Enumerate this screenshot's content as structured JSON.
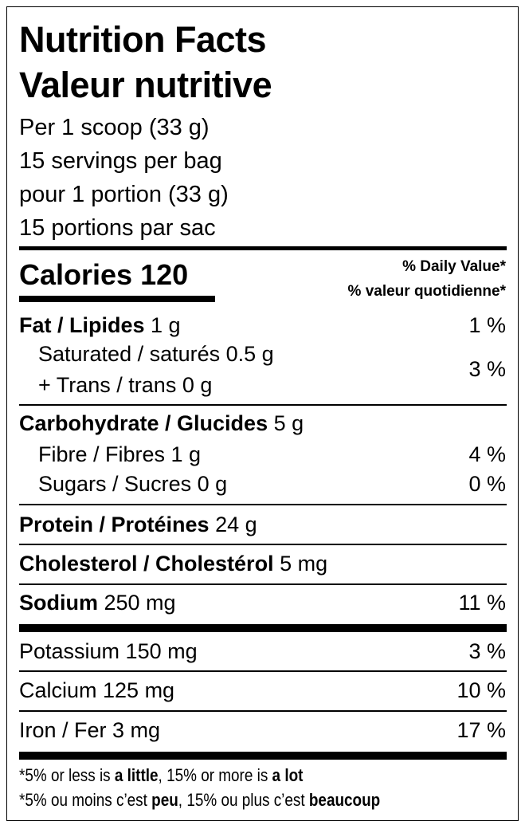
{
  "title_en": "Nutrition Facts",
  "title_fr": "Valeur nutritive",
  "serving": [
    "Per 1 scoop (33 g)",
    "15 servings per bag",
    "pour 1 portion (33 g)",
    "15 portions par sac"
  ],
  "calories": "Calories 120",
  "daily_value_en": "% Daily Value*",
  "daily_value_fr": "% valeur quotidienne*",
  "fat": {
    "label": "Fat / Lipides",
    "amount": " 1 g",
    "pct": "1 %"
  },
  "saturated": {
    "label": "Saturated / saturés 0.5 g"
  },
  "trans": {
    "label": "+ Trans / trans 0 g"
  },
  "sat_trans_pct": "3 %",
  "carb": {
    "label": "Carbohydrate / Glucides",
    "amount": " 5 g"
  },
  "fibre": {
    "label": "Fibre / Fibres 1 g",
    "pct": "4 %"
  },
  "sugars": {
    "label": "Sugars / Sucres 0 g",
    "pct": "0 %"
  },
  "protein": {
    "label": "Protein / Protéines",
    "amount": " 24 g"
  },
  "cholesterol": {
    "label": "Cholesterol / Cholestérol",
    "amount": " 5 mg"
  },
  "sodium": {
    "label": "Sodium",
    "amount": " 250 mg",
    "pct": "11 %"
  },
  "potassium": {
    "label": "Potassium 150 mg",
    "pct": "3 %"
  },
  "calcium": {
    "label": "Calcium 125 mg",
    "pct": "10 %"
  },
  "iron": {
    "label": "Iron / Fer 3 mg",
    "pct": "17 %"
  },
  "footnote_en": {
    "a": "*5% or less is ",
    "b": "a little",
    "c": ", 15% or more is ",
    "d": "a lot"
  },
  "footnote_fr": {
    "a": "*5% ou moins c’est ",
    "b": "peu",
    "c": ", 15% ou plus c’est ",
    "d": "beaucoup"
  }
}
